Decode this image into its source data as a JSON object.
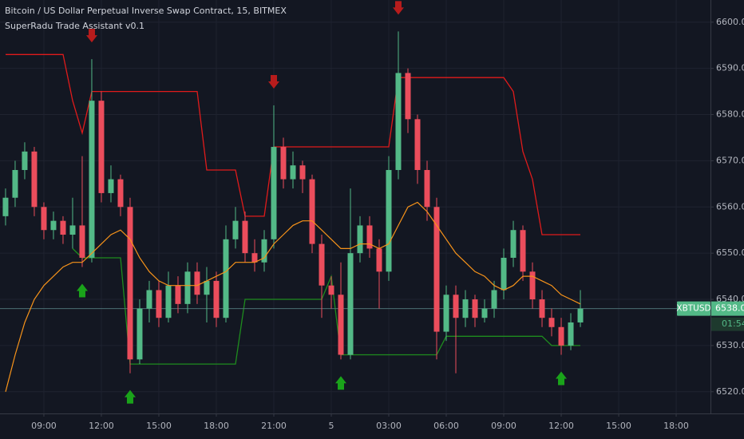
{
  "chart_data": {
    "type": "candlestick",
    "title": "Bitcoin / US Dollar Perpetual Inverse Swap Contract, 15, BITMEX",
    "subtitle": "SuperRadu Trade Assistant v0.1",
    "up_color": "#53b987",
    "down_color": "#eb4d5c",
    "grid": true,
    "x": [
      7,
      7.5,
      8,
      8.5,
      9,
      9.5,
      10,
      10.5,
      11,
      11.5,
      12,
      12.5,
      13,
      13.5,
      14,
      14.5,
      15,
      15.5,
      16,
      16.5,
      17,
      17.5,
      18,
      18.5,
      19,
      19.5,
      20,
      20.5,
      21,
      21.5,
      22,
      22.5,
      23,
      23.5,
      24,
      24.5,
      25,
      25.5,
      26,
      26.5,
      27,
      27.5,
      28,
      28.5,
      29,
      29.5,
      30,
      30.5,
      31,
      31.5,
      32,
      32.5,
      33,
      33.5,
      34,
      34.5,
      35,
      35.5,
      36,
      36.5,
      37
    ],
    "open": [
      6558,
      6562,
      6568,
      6572,
      6560,
      6555,
      6557,
      6554,
      6556,
      6549,
      6583,
      6563,
      6566,
      6560,
      6527,
      6538,
      6542,
      6536,
      6543,
      6539,
      6546,
      6541,
      6544,
      6536,
      6553,
      6557,
      6550,
      6548,
      6553,
      6573,
      6566,
      6569,
      6566,
      6552,
      6543,
      6541,
      6528,
      6550,
      6556,
      6551,
      6546,
      6568,
      6589,
      6579,
      6568,
      6560,
      6533,
      6541,
      6536,
      6540,
      6536,
      6538,
      6542,
      6549,
      6555,
      6546,
      6540,
      6536,
      6534,
      6530,
      6535
    ],
    "high": [
      6564,
      6570,
      6574,
      6573,
      6561,
      6559,
      6558,
      6562,
      6571,
      6592,
      6585,
      6569,
      6567,
      6562,
      6540,
      6544,
      6544,
      6546,
      6545,
      6548,
      6548,
      6547,
      6546,
      6556,
      6560,
      6559,
      6553,
      6555,
      6582,
      6575,
      6572,
      6570,
      6567,
      6554,
      6545,
      6548,
      6564,
      6558,
      6558,
      6553,
      6571,
      6598,
      6590,
      6580,
      6570,
      6562,
      6543,
      6543,
      6542,
      6541,
      6540,
      6544,
      6551,
      6557,
      6556,
      6548,
      6542,
      6538,
      6536,
      6537,
      6542
    ],
    "low": [
      6556,
      6560,
      6566,
      6558,
      6553,
      6553,
      6552,
      6551,
      6547,
      6548,
      6561,
      6561,
      6558,
      6524,
      6526,
      6535,
      6534,
      6535,
      6537,
      6537,
      6539,
      6535,
      6534,
      6535,
      6551,
      6548,
      6546,
      6546,
      6551,
      6564,
      6564,
      6563,
      6550,
      6536,
      6538,
      6527,
      6527,
      6548,
      6549,
      6538,
      6544,
      6566,
      6576,
      6565,
      6557,
      6527,
      6531,
      6524,
      6534,
      6534,
      6535,
      6536,
      6540,
      6547,
      6544,
      6538,
      6534,
      6532,
      6528,
      6529,
      6534
    ],
    "close": [
      6562,
      6568,
      6572,
      6560,
      6555,
      6557,
      6554,
      6556,
      6549,
      6583,
      6563,
      6566,
      6560,
      6527,
      6538,
      6542,
      6536,
      6543,
      6539,
      6546,
      6541,
      6544,
      6536,
      6553,
      6557,
      6550,
      6548,
      6553,
      6573,
      6566,
      6569,
      6566,
      6552,
      6543,
      6541,
      6528,
      6550,
      6556,
      6551,
      6546,
      6568,
      6589,
      6579,
      6568,
      6560,
      6533,
      6541,
      6536,
      6540,
      6536,
      6538,
      6542,
      6549,
      6555,
      6546,
      6540,
      6536,
      6534,
      6530,
      6535,
      6538
    ],
    "ema": {
      "color": "#f7931a",
      "values": [
        6520,
        6528,
        6535,
        6540,
        6543,
        6545,
        6547,
        6548,
        6548,
        6550,
        6552,
        6554,
        6555,
        6553,
        6549,
        6546,
        6544,
        6543,
        6543,
        6543,
        6543,
        6544,
        6545,
        6546,
        6548,
        6548,
        6548,
        6549,
        6552,
        6554,
        6556,
        6557,
        6557,
        6555,
        6553,
        6551,
        6551,
        6552,
        6552,
        6551,
        6552,
        6556,
        6560,
        6561,
        6559,
        6556,
        6553,
        6550,
        6548,
        6546,
        6545,
        6543,
        6542,
        6543,
        6545,
        6545,
        6544,
        6543,
        6541,
        6540,
        6539
      ]
    },
    "resistance": {
      "color": "#e01b1b",
      "values": [
        6593,
        6593,
        6593,
        6593,
        6593,
        6593,
        6593,
        6583,
        6576,
        6585,
        6585,
        6585,
        6585,
        6585,
        6585,
        6585,
        6585,
        6585,
        6585,
        6585,
        6585,
        6568,
        6568,
        6568,
        6568,
        6558,
        6558,
        6558,
        6573,
        6573,
        6573,
        6573,
        6573,
        6573,
        6573,
        6573,
        6573,
        6573,
        6573,
        6573,
        6573,
        6588,
        6588,
        6588,
        6588,
        6588,
        6588,
        6588,
        6588,
        6588,
        6588,
        6588,
        6588,
        6585,
        6572,
        6566,
        6554,
        6554,
        6554,
        6554,
        6554
      ]
    },
    "support": {
      "color": "#1e8c1e",
      "values": [
        null,
        null,
        null,
        null,
        null,
        null,
        null,
        6551,
        6549,
        6549,
        6549,
        6549,
        6549,
        6526,
        6526,
        6526,
        6526,
        6526,
        6526,
        6526,
        6526,
        6526,
        6526,
        6526,
        6526,
        6540,
        6540,
        6540,
        6540,
        6540,
        6540,
        6540,
        6540,
        6540,
        6545,
        6528,
        6528,
        6528,
        6528,
        6528,
        6528,
        6528,
        6528,
        6528,
        6528,
        6528,
        6532,
        6532,
        6532,
        6532,
        6532,
        6532,
        6532,
        6532,
        6532,
        6532,
        6532,
        6530,
        6530,
        6530,
        6530
      ]
    },
    "sell_signals": [
      9,
      28,
      41
    ],
    "buy_signals": [
      8,
      13,
      35,
      58
    ],
    "sell_color": "#b71c1c",
    "buy_color": "#1aa31a",
    "last_price": {
      "value": 6538,
      "label": "6538.0"
    },
    "symbol": "XBTUSD",
    "countdown": "01:54",
    "xlim": [
      6.71,
      43.79
    ],
    "xticks": [
      {
        "value": 9,
        "label": "09:00"
      },
      {
        "value": 12,
        "label": "12:00"
      },
      {
        "value": 15,
        "label": "15:00"
      },
      {
        "value": 18,
        "label": "18:00"
      },
      {
        "value": 21,
        "label": "21:00"
      },
      {
        "value": 24,
        "label": "5"
      },
      {
        "value": 27,
        "label": "03:00"
      },
      {
        "value": 30,
        "label": "06:00"
      },
      {
        "value": 33,
        "label": "09:00"
      },
      {
        "value": 36,
        "label": "12:00"
      },
      {
        "value": 39,
        "label": "15:00"
      },
      {
        "value": 42,
        "label": "18:00"
      }
    ],
    "ylim": [
      6515.3,
      6604.8
    ],
    "yticks": [
      {
        "value": 6520,
        "label": "6520.0"
      },
      {
        "value": 6530,
        "label": "6530.0"
      },
      {
        "value": 6540,
        "label": "6540.0"
      },
      {
        "value": 6550,
        "label": "6550.0"
      },
      {
        "value": 6560,
        "label": "6560.0"
      },
      {
        "value": 6570,
        "label": "6570.0"
      },
      {
        "value": 6580,
        "label": "6580.0"
      },
      {
        "value": 6590,
        "label": "6590.0"
      },
      {
        "value": 6600,
        "label": "6600.0"
      }
    ]
  }
}
